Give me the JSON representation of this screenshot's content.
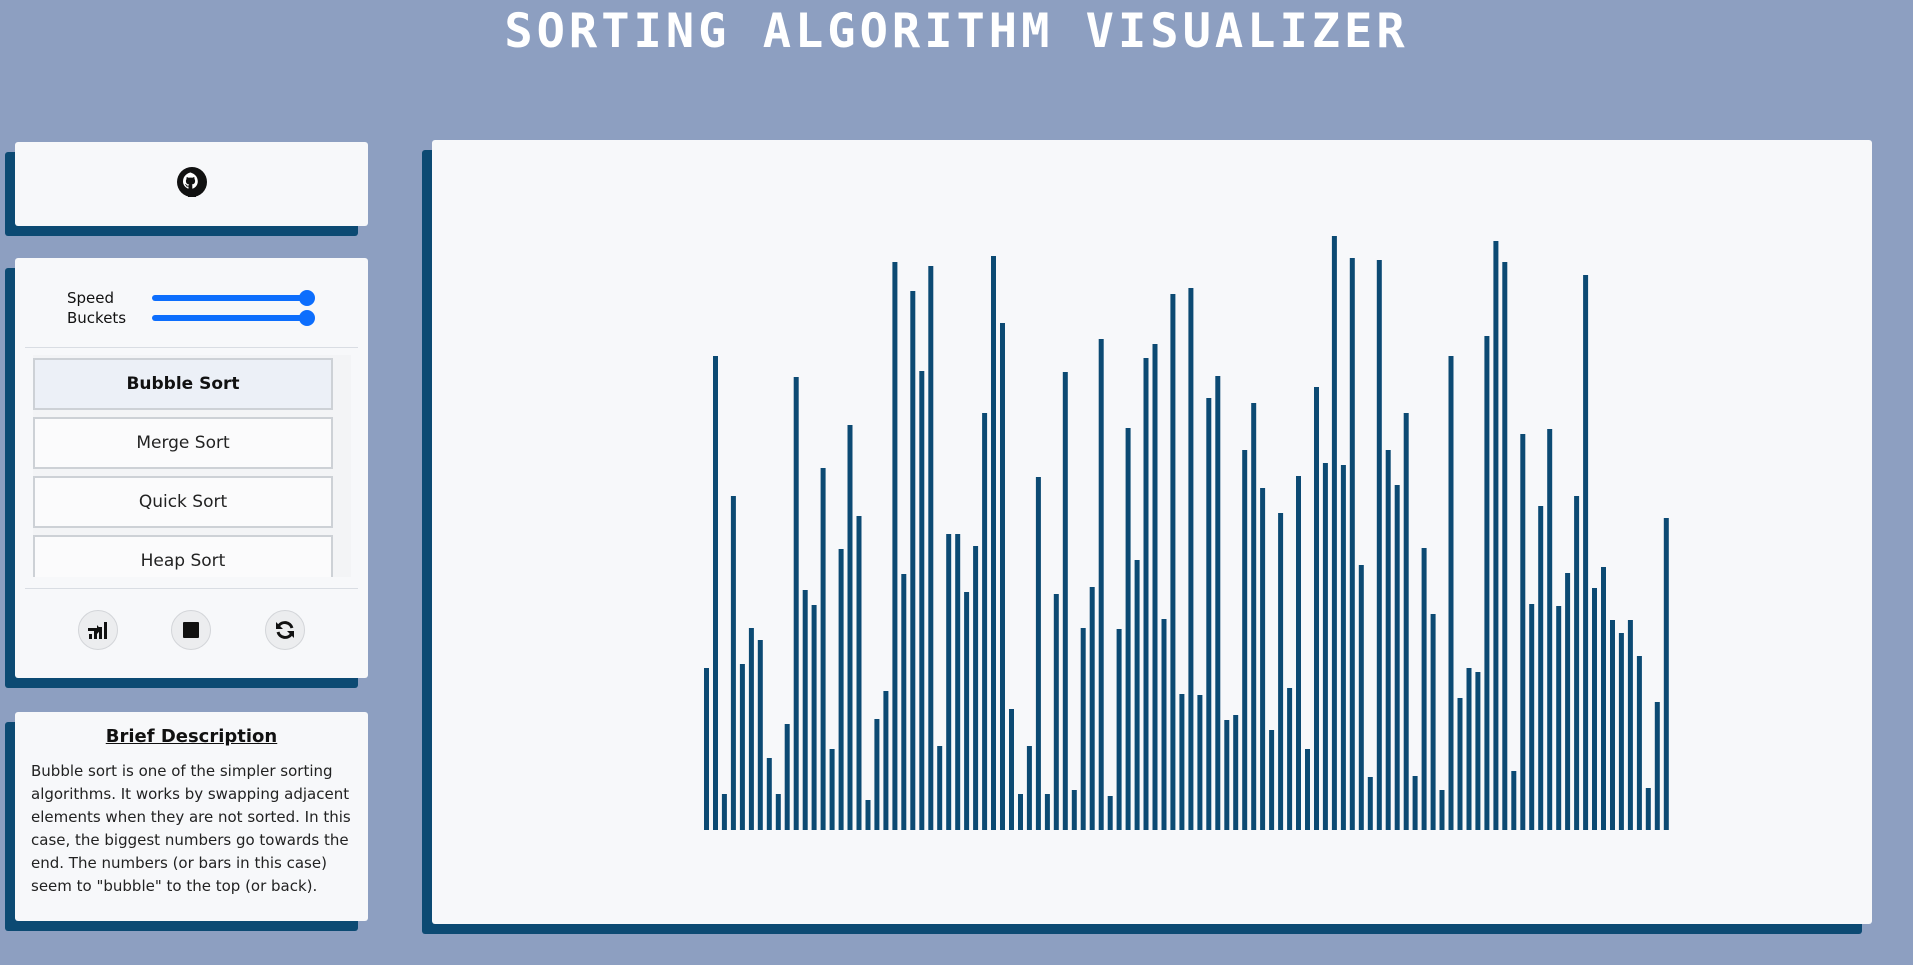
{
  "app": {
    "title": "SORTING ALGORITHM VISUALIZER"
  },
  "github": {
    "icon": "github-icon"
  },
  "controls": {
    "speed_label": "Speed",
    "speed_value": 1.0,
    "buckets_label": "Buckets",
    "buckets_value": 1.0,
    "algorithms": [
      {
        "label": "Bubble Sort",
        "active": true
      },
      {
        "label": "Merge Sort",
        "active": false
      },
      {
        "label": "Quick Sort",
        "active": false
      },
      {
        "label": "Heap Sort",
        "active": false
      }
    ],
    "buttons": [
      "sort-icon",
      "stop-icon",
      "reset-icon"
    ]
  },
  "description": {
    "title": "Brief Description",
    "text": "Bubble sort is one of the simpler sorting algorithms. It works by swapping adjacent elements when they are not sorted. In this case, the biggest numbers go towards the end. The numbers (or bars in this case) seem to \"bubble\" to the top (or back)."
  },
  "colors": {
    "background": "#8d9fc1",
    "bar": "#0c4a73",
    "accent": "#0d6efd",
    "panel": "#f7f8fa"
  },
  "chart_data": {
    "type": "bar",
    "values": [
      162,
      474,
      36,
      334,
      166,
      202,
      190,
      72,
      36,
      106,
      453,
      240,
      225,
      362,
      81,
      281,
      405,
      314,
      30,
      111,
      139,
      568,
      256,
      539,
      459,
      564,
      84,
      296,
      296,
      238,
      284,
      417,
      574,
      507,
      121,
      36,
      84,
      353,
      36,
      236,
      458,
      40,
      202,
      243,
      491,
      34,
      201,
      402,
      270,
      472,
      486,
      211,
      536,
      136,
      542,
      135,
      432,
      454,
      110,
      115,
      380,
      427,
      342,
      100,
      317,
      142,
      354,
      81,
      443,
      367,
      594,
      365,
      572,
      265,
      53,
      570,
      380,
      345,
      417,
      54,
      282,
      216,
      40,
      474,
      132,
      162,
      158,
      494,
      589,
      568,
      59,
      396,
      226,
      324,
      401,
      224,
      257,
      334,
      555,
      242,
      263,
      210,
      197,
      210,
      174,
      42,
      128,
      312
    ]
  }
}
